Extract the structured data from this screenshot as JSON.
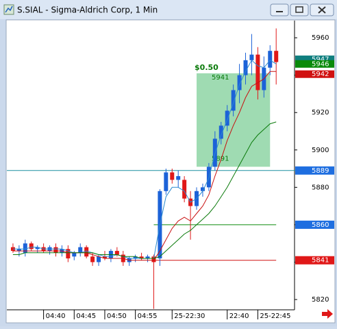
{
  "window_title": "S.SIAL - Sigma-Aldrich Corp, 1 Min",
  "chart_data": {
    "type": "candlestick",
    "open": [
      5848,
      5846,
      5845,
      5850,
      5847,
      5848,
      5846,
      5848,
      5845,
      5847,
      5843,
      5845,
      5848,
      5843,
      5840,
      5843,
      5842,
      5846,
      5844,
      5840,
      5842,
      5843,
      5842,
      5843,
      5842,
      5878,
      5888,
      5884,
      5884,
      5874,
      5870,
      5878,
      5880,
      5891,
      5906,
      5913,
      5921,
      5932,
      5940,
      5948,
      5951,
      5932,
      5944,
      5953
    ],
    "high": [
      5850,
      5849,
      5852,
      5851,
      5849,
      5850,
      5849,
      5850,
      5849,
      5849,
      5846,
      5850,
      5849,
      5845,
      5844,
      5846,
      5847,
      5848,
      5846,
      5843,
      5844,
      5845,
      5844,
      5844,
      5879,
      5890,
      5890,
      5889,
      5886,
      5878,
      5880,
      5882,
      5893,
      5910,
      5915,
      5924,
      5935,
      5946,
      5952,
      5962,
      5955,
      5950,
      5956,
      5965
    ],
    "low": [
      5845,
      5843,
      5843,
      5846,
      5845,
      5845,
      5844,
      5843,
      5843,
      5840,
      5841,
      5843,
      5842,
      5838,
      5838,
      5841,
      5840,
      5843,
      5838,
      5838,
      5840,
      5841,
      5840,
      5815,
      5838,
      5876,
      5882,
      5880,
      5872,
      5852,
      5868,
      5875,
      5878,
      5889,
      5903,
      5910,
      5918,
      5925,
      5935,
      5940,
      5927,
      5928,
      5940,
      5935
    ],
    "close": [
      5846,
      5847,
      5850,
      5847,
      5848,
      5846,
      5848,
      5845,
      5847,
      5842,
      5845,
      5848,
      5843,
      5840,
      5843,
      5842,
      5846,
      5844,
      5840,
      5842,
      5843,
      5842,
      5843,
      5840,
      5878,
      5888,
      5884,
      5886,
      5874,
      5870,
      5878,
      5880,
      5891,
      5906,
      5913,
      5921,
      5932,
      5940,
      5948,
      5951,
      5932,
      5944,
      5953,
      5947
    ],
    "up_color": "#1c62d8",
    "down_color": "#e01818",
    "lines": [
      {
        "color": "#2a8ad0",
        "values": [
          5847,
          5847,
          5847,
          5848,
          5848,
          5847,
          5847,
          5847,
          5847,
          5846,
          5845,
          5845,
          5846,
          5845,
          5844,
          5843,
          5843,
          5844,
          5843,
          5842,
          5842,
          5842,
          5842,
          5842,
          5860,
          5875,
          5880,
          5880,
          5878,
          5872,
          5874,
          5878,
          5885,
          5898,
          5908,
          5916,
          5925,
          5935,
          5942,
          5948,
          5945,
          5944,
          5948,
          5946
        ]
      },
      {
        "color": "#c81010",
        "values": [
          5846,
          5846,
          5846,
          5846,
          5846,
          5846,
          5846,
          5846,
          5846,
          5845,
          5845,
          5845,
          5845,
          5844,
          5843,
          5842,
          5842,
          5842,
          5842,
          5841,
          5841,
          5841,
          5841,
          5841,
          5846,
          5852,
          5858,
          5862,
          5864,
          5862,
          5866,
          5870,
          5876,
          5886,
          5895,
          5905,
          5913,
          5920,
          5928,
          5934,
          5936,
          5938,
          5942,
          5942
        ]
      },
      {
        "color": "#0a7a0a",
        "values": [
          5844,
          5844,
          5845,
          5845,
          5845,
          5845,
          5845,
          5845,
          5845,
          5845,
          5845,
          5845,
          5845,
          5845,
          5844,
          5844,
          5844,
          5844,
          5843,
          5843,
          5843,
          5842,
          5842,
          5842,
          5843,
          5846,
          5849,
          5852,
          5855,
          5857,
          5860,
          5863,
          5866,
          5870,
          5875,
          5880,
          5886,
          5892,
          5898,
          5904,
          5908,
          5911,
          5914,
          5915
        ]
      }
    ],
    "levels": [
      {
        "value": 5889,
        "color": "#1a8fa0",
        "tag_color": "#1e6ee0",
        "from": -1
      },
      {
        "value": 5860,
        "color": "#0a8a0a",
        "tag_color": "#1e6ee0",
        "from": 23
      },
      {
        "value": 5841,
        "color": "#d01010",
        "tag_color": "#e01818",
        "from": 23
      }
    ],
    "tags": [
      {
        "value": 5947,
        "color": "#0f7f7f"
      },
      {
        "value": 5946,
        "color": "#0a8a0a"
      },
      {
        "value": 5942,
        "color": "#d01010"
      }
    ],
    "range_box": {
      "from": 5891,
      "to": 5941,
      "xrange": [
        30,
        42
      ],
      "label": "$0.50",
      "color": "#7fcf98"
    },
    "xlim": [
      -1,
      46
    ],
    "ylim": [
      5814.5,
      5969.2
    ],
    "yticks": [
      5820,
      5840,
      5860,
      5880,
      5900,
      5920,
      5940,
      5960
    ],
    "xticks": [
      {
        "value": 5,
        "label": "04:40"
      },
      {
        "value": 10,
        "label": "04:45"
      },
      {
        "value": 15,
        "label": "04:50"
      },
      {
        "value": 20,
        "label": "04:55"
      },
      {
        "value": 26,
        "label": "25-22:30"
      },
      {
        "value": 35,
        "label": "22:40"
      },
      {
        "value": 40,
        "label": "25-22:45"
      }
    ]
  }
}
